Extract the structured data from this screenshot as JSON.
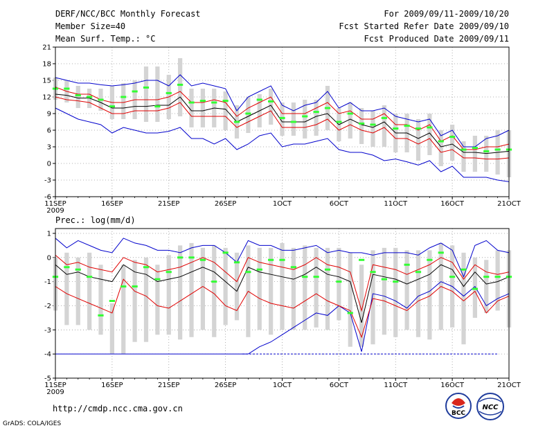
{
  "header": {
    "title": "DERF/NCC/BCC Monthly Forecast",
    "member_size": "Member Size=40",
    "variable": "Mean Surf. Temp.: °C",
    "period": "For 2009/09/11-2009/10/20",
    "refer_date": "Fcst Started Refer Date 2009/09/10",
    "produced_date": "Fcst Produced Date 2009/09/11"
  },
  "footer": {
    "url": "http://cmdp.ncc.cma.gov.cn",
    "credit": "GrADS: COLA/IGES",
    "logo_bcc": "BCC",
    "logo_ncc": "NCC"
  },
  "colors": {
    "box": "#d4d4d4",
    "median": "#33ff33",
    "mean": "#000000",
    "spread": "#e00000",
    "extreme": "#0000cc"
  },
  "chart_data": [
    {
      "type": "box-forecast",
      "title": "Mean Surf. Temp.: °C",
      "x_labels": [
        "11SEP",
        "16SEP",
        "21SEP",
        "26SEP",
        "1OCT",
        "6OCT",
        "11OCT",
        "16OCT",
        "21OCT"
      ],
      "x_labels_display": [
        "11SEP",
        "16SEP",
        "21SEP",
        "26SEP",
        "1OCT",
        "6OCT",
        "11OCT",
        "16OCT",
        "21OCT"
      ],
      "year_label": "2009",
      "xlim": [
        0,
        40
      ],
      "ylim": [
        -6,
        21
      ],
      "yticks": [
        -6,
        -3,
        0,
        3,
        6,
        9,
        12,
        15,
        18,
        21
      ],
      "series": {
        "max": [
          15.5,
          15,
          14.5,
          14.5,
          14.2,
          14,
          14.2,
          14.5,
          15,
          15,
          14,
          16,
          14,
          14.5,
          14,
          13.5,
          9.5,
          12,
          13,
          14,
          10.5,
          9.5,
          10.5,
          11,
          13,
          10,
          11,
          9.5,
          9.5,
          10,
          8.5,
          8,
          7.5,
          8,
          5,
          6,
          3,
          3,
          4.5,
          5,
          6
        ],
        "upper": [
          13.8,
          13,
          12.5,
          12.5,
          11.5,
          11,
          11,
          11.5,
          11.5,
          11.5,
          12,
          13,
          11,
          11,
          11.5,
          11,
          8.5,
          10,
          11,
          12,
          9,
          9,
          9,
          10,
          11,
          9,
          9.5,
          8,
          8,
          9,
          7,
          7,
          6,
          7,
          4,
          5,
          2.5,
          2.5,
          3,
          3,
          3.5
        ],
        "mean": [
          12.5,
          12.3,
          11.8,
          11.8,
          11,
          10,
          10,
          10.3,
          10.3,
          10.5,
          10.5,
          12,
          9.5,
          9.5,
          10,
          9.8,
          7.5,
          8.5,
          9.5,
          10.5,
          7.5,
          7.5,
          7.5,
          8.5,
          9,
          7,
          8,
          7,
          6.5,
          7.5,
          5.5,
          5.5,
          4.5,
          5.5,
          3,
          3.5,
          2,
          2,
          1.8,
          2,
          2.2
        ],
        "lower": [
          12,
          11.5,
          11.3,
          11,
          10,
          9,
          9,
          9.5,
          9.5,
          9.5,
          10,
          11,
          8.5,
          8.5,
          8.5,
          8.5,
          6.5,
          7.5,
          8.5,
          9.5,
          6.5,
          6.5,
          6.5,
          7,
          8,
          6,
          7,
          6,
          5.5,
          6.5,
          4.5,
          4.5,
          3.5,
          4.5,
          2,
          2.5,
          1,
          1,
          0.8,
          0.8,
          1
        ],
        "min": [
          10,
          9,
          8,
          7.5,
          7,
          5.5,
          6.5,
          6,
          5.5,
          5.5,
          5.8,
          6.5,
          4.5,
          4.5,
          3.5,
          4.5,
          2.5,
          3.5,
          5,
          5.5,
          3,
          3.5,
          3.5,
          4,
          4.5,
          2.5,
          2,
          2,
          1.5,
          0.5,
          0.8,
          0.3,
          -0.3,
          0.5,
          -1.5,
          -0.5,
          -2.5,
          -2.5,
          -2.5,
          -3,
          -3.3
        ],
        "median": [
          13.5,
          13.5,
          12.3,
          12,
          11.5,
          10.3,
          12,
          13,
          13.7,
          10.3,
          12.7,
          14.2,
          11,
          11.3,
          11,
          11.3,
          7.5,
          9,
          11.5,
          11.2,
          8.2,
          7.5,
          8.5,
          9.3,
          10,
          7.5,
          9,
          7.2,
          7,
          8.2,
          6.3,
          6.8,
          6.3,
          6.5,
          4,
          4.8,
          2.5,
          2.8,
          2.2,
          2.5,
          2.5
        ],
        "box_top": [
          15.5,
          15,
          14,
          13.5,
          13.5,
          14,
          14.5,
          15,
          17.5,
          17.5,
          16,
          19,
          13.5,
          13.5,
          13.5,
          13,
          10.5,
          12,
          12.5,
          13.5,
          11,
          11,
          11.5,
          11.5,
          14,
          10,
          11,
          10,
          9.5,
          10.5,
          9,
          9,
          8,
          9,
          6,
          7,
          4,
          5,
          5,
          6,
          6
        ],
        "box_bottom": [
          11.5,
          11,
          10,
          10,
          9.5,
          8,
          8,
          8,
          7.5,
          7.5,
          8,
          8.5,
          6.5,
          6.5,
          6.5,
          6,
          4.5,
          5.5,
          6.5,
          7,
          5,
          5,
          4.5,
          5,
          6,
          4,
          4.5,
          3.5,
          3,
          3,
          2,
          2,
          0.5,
          1.5,
          -0.5,
          0.5,
          -1.5,
          -1.5,
          -1.5,
          -2,
          -2.5
        ]
      }
    },
    {
      "type": "box-forecast",
      "title": "Prec.: log(mm/d)",
      "x_labels": [
        "11SEP",
        "16SEP",
        "21SEP",
        "26SEP",
        "1OCT",
        "6OCT",
        "11OCT",
        "16OCT",
        "21OCT"
      ],
      "x_labels_display": [
        "11SEP",
        "16SEP",
        "21SEP",
        "26SEP",
        "1OCT",
        "6OCT",
        "11OCT",
        "16OCT",
        "21OCT"
      ],
      "year_label": "2009",
      "xlim": [
        0,
        40
      ],
      "ylim": [
        -5,
        1.2
      ],
      "yticks": [
        -5,
        -4,
        -3,
        -2,
        -1,
        0,
        1
      ],
      "series": {
        "max": [
          0.8,
          0.4,
          0.7,
          0.5,
          0.3,
          0.2,
          0.8,
          0.6,
          0.5,
          0.3,
          0.3,
          0.2,
          0.4,
          0.5,
          0.5,
          0.2,
          -0.2,
          0.7,
          0.5,
          0.5,
          0.3,
          0.3,
          0.4,
          0.5,
          0.2,
          0.3,
          0.2,
          0.2,
          0.1,
          0.2,
          0.2,
          0.2,
          0.1,
          0.4,
          0.6,
          0.3,
          -0.8,
          0.5,
          0.7,
          0.3,
          0.2
        ],
        "upper": [
          0.1,
          -0.3,
          -0.2,
          -0.4,
          -0.5,
          -0.6,
          0,
          -0.2,
          -0.3,
          -0.6,
          -0.5,
          -0.4,
          -0.2,
          0,
          -0.2,
          -0.6,
          -1,
          0,
          -0.2,
          -0.3,
          -0.4,
          -0.5,
          -0.3,
          0,
          -0.3,
          -0.4,
          -0.6,
          -2.2,
          -0.3,
          -0.4,
          -0.5,
          -0.7,
          -0.5,
          -0.3,
          0,
          -0.2,
          -0.9,
          -0.3,
          -0.6,
          -0.7,
          -0.6
        ],
        "mean": [
          -0.3,
          -0.7,
          -0.6,
          -0.8,
          -0.9,
          -1,
          -0.3,
          -0.6,
          -0.7,
          -1,
          -0.9,
          -0.8,
          -0.6,
          -0.4,
          -0.6,
          -1,
          -1.4,
          -0.4,
          -0.6,
          -0.7,
          -0.8,
          -0.9,
          -0.7,
          -0.4,
          -0.7,
          -0.8,
          -1,
          -2.7,
          -0.7,
          -0.8,
          -0.9,
          -1.1,
          -0.9,
          -0.7,
          -0.3,
          -0.5,
          -1.2,
          -0.6,
          -1.1,
          -1,
          -0.8
        ],
        "lower": [
          -1.2,
          -1.5,
          -1.7,
          -1.9,
          -2.1,
          -2.3,
          -0.9,
          -1.4,
          -1.6,
          -2,
          -2.1,
          -1.8,
          -1.5,
          -1.2,
          -1.5,
          -2,
          -2.2,
          -1.4,
          -1.7,
          -1.9,
          -2,
          -2.1,
          -1.8,
          -1.5,
          -1.8,
          -2,
          -2.2,
          -3.3,
          -1.7,
          -1.8,
          -2,
          -2.2,
          -1.8,
          -1.6,
          -1.2,
          -1.4,
          -1.8,
          -1.4,
          -2.3,
          -1.8,
          -1.6
        ],
        "min": [
          -4,
          -4,
          -4,
          -4,
          -4,
          -4,
          -4,
          -4,
          -4,
          -4,
          -4,
          -4,
          -4,
          -4,
          -4,
          -4,
          -4,
          -4,
          -3.7,
          -3.5,
          -3.2,
          -2.9,
          -2.6,
          -2.3,
          -2.4,
          -2,
          -2.3,
          -3.9,
          -1.5,
          -1.6,
          -1.8,
          -2.1,
          -1.6,
          -1.4,
          -1,
          -1.2,
          -1.6,
          -1.2,
          -2,
          -1.7,
          -1.5
        ],
        "median": [
          -0.8,
          -0.4,
          -0.5,
          -0.8,
          -2.4,
          -1.8,
          -1.2,
          -1.2,
          -0.4,
          -0.9,
          -0.6,
          0,
          0,
          -0.1,
          -1.0,
          0.2,
          -0.2,
          -0.6,
          -0.5,
          -0.1,
          -0.1,
          -0.4,
          -0.8,
          -0.8,
          -0.5,
          -1.0,
          -2.3,
          -0.1,
          -0.6,
          -0.9,
          -1.0,
          -0.3,
          -0.6,
          -0.1,
          0.2,
          -0.8,
          -0.5,
          -1.3,
          -0.8,
          -0.8,
          -0.8
        ],
        "box_top": [
          0,
          0.2,
          0,
          0.2,
          -0.3,
          -1.9,
          -0.3,
          -0.1,
          0,
          -0.3,
          0.1,
          0.5,
          0.6,
          0.4,
          0.5,
          0.4,
          0.2,
          0.5,
          0.4,
          0.4,
          0.6,
          0.4,
          0.5,
          0.4,
          0.4,
          0.4,
          0.2,
          -0.3,
          0.3,
          0.4,
          0.4,
          0.3,
          0.3,
          0.3,
          0.6,
          0.5,
          0.2,
          0,
          -0.1,
          0.3,
          0.3
        ],
        "box_bottom": [
          -2.2,
          -2.8,
          -2.8,
          -3.0,
          -3.2,
          -4,
          -4,
          -3.5,
          -3.5,
          -3.2,
          -3.2,
          -3.4,
          -3.3,
          -3.0,
          -3.3,
          -2.8,
          -2.6,
          -3.3,
          -3.0,
          -3.2,
          -3.0,
          -3.0,
          -3.0,
          -2.9,
          -3.0,
          -2.6,
          -3.7,
          -3.7,
          -3.6,
          -3.2,
          -3.3,
          -3.0,
          -3.3,
          -3.4,
          -3.0,
          -2.9,
          -3.6,
          -2.5,
          -2.3,
          -2.2,
          -2.9
        ]
      }
    }
  ]
}
